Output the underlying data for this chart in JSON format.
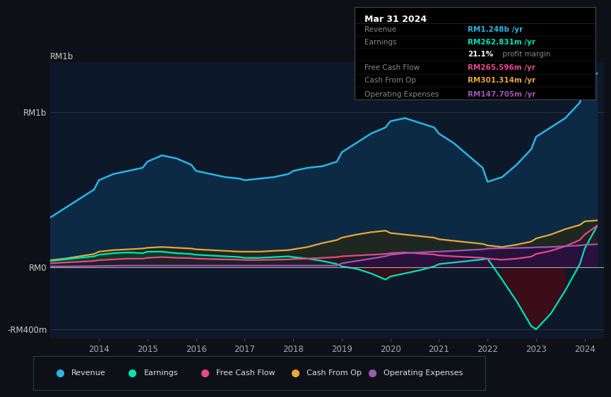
{
  "bg_color": "#0d1117",
  "plot_bg_color": "#0d1929",
  "revenue_color": "#29b5e8",
  "earnings_color": "#00e5b4",
  "free_cash_flow_color": "#e8488a",
  "cash_from_op_color": "#e8a838",
  "operating_expenses_color": "#9b59b6",
  "revenue_fill": "#0d2a45",
  "earnings_fill_pos": "#0d3a28",
  "earnings_fill_neg": "#3a0d18",
  "fcf_fill_neg": "#3a0d18",
  "cashop_fill": "#1e2010",
  "opex_fill": "#1a0d2a",
  "info_revenue_color": "#29b5e8",
  "info_earnings_color": "#00e5b4",
  "info_fcf_color": "#e8488a",
  "info_cashop_color": "#e8a838",
  "info_opex_color": "#9b59b6",
  "legend_labels": [
    "Revenue",
    "Earnings",
    "Free Cash Flow",
    "Cash From Op",
    "Operating Expenses"
  ],
  "legend_colors": [
    "#29b5e8",
    "#00e5b4",
    "#e8488a",
    "#e8a838",
    "#9b59b6"
  ],
  "years": [
    2013.0,
    2013.3,
    2013.6,
    2013.9,
    2014.0,
    2014.3,
    2014.6,
    2014.9,
    2015.0,
    2015.3,
    2015.6,
    2015.9,
    2016.0,
    2016.3,
    2016.6,
    2016.9,
    2017.0,
    2017.3,
    2017.6,
    2017.9,
    2018.0,
    2018.3,
    2018.6,
    2018.9,
    2019.0,
    2019.3,
    2019.6,
    2019.9,
    2020.0,
    2020.3,
    2020.6,
    2020.9,
    2021.0,
    2021.3,
    2021.6,
    2021.9,
    2022.0,
    2022.3,
    2022.6,
    2022.9,
    2023.0,
    2023.3,
    2023.6,
    2023.9,
    2024.0,
    2024.25
  ],
  "revenue": [
    0.32,
    0.38,
    0.44,
    0.5,
    0.56,
    0.6,
    0.62,
    0.64,
    0.68,
    0.72,
    0.7,
    0.66,
    0.62,
    0.6,
    0.58,
    0.57,
    0.56,
    0.57,
    0.58,
    0.6,
    0.62,
    0.64,
    0.65,
    0.68,
    0.74,
    0.8,
    0.86,
    0.9,
    0.94,
    0.96,
    0.93,
    0.9,
    0.86,
    0.8,
    0.72,
    0.64,
    0.55,
    0.58,
    0.66,
    0.76,
    0.84,
    0.9,
    0.96,
    1.06,
    1.18,
    1.248
  ],
  "earnings": [
    0.04,
    0.05,
    0.06,
    0.07,
    0.08,
    0.09,
    0.095,
    0.09,
    0.1,
    0.1,
    0.09,
    0.085,
    0.08,
    0.075,
    0.07,
    0.065,
    0.06,
    0.06,
    0.065,
    0.07,
    0.065,
    0.055,
    0.04,
    0.02,
    0.005,
    -0.01,
    -0.04,
    -0.08,
    -0.06,
    -0.04,
    -0.02,
    0.005,
    0.02,
    0.03,
    0.04,
    0.05,
    0.055,
    -0.08,
    -0.22,
    -0.38,
    -0.4,
    -0.3,
    -0.15,
    0.02,
    0.12,
    0.263
  ],
  "free_cash_flow": [
    0.025,
    0.03,
    0.035,
    0.04,
    0.045,
    0.05,
    0.055,
    0.055,
    0.06,
    0.065,
    0.06,
    0.058,
    0.055,
    0.052,
    0.05,
    0.048,
    0.046,
    0.046,
    0.048,
    0.05,
    0.052,
    0.055,
    0.06,
    0.065,
    0.07,
    0.075,
    0.08,
    0.085,
    0.09,
    0.095,
    0.088,
    0.082,
    0.076,
    0.07,
    0.065,
    0.06,
    0.055,
    0.048,
    0.055,
    0.068,
    0.085,
    0.105,
    0.135,
    0.175,
    0.21,
    0.266
  ],
  "cash_from_op": [
    0.045,
    0.055,
    0.07,
    0.085,
    0.1,
    0.11,
    0.115,
    0.12,
    0.125,
    0.13,
    0.125,
    0.12,
    0.115,
    0.11,
    0.105,
    0.1,
    0.1,
    0.1,
    0.105,
    0.11,
    0.115,
    0.13,
    0.155,
    0.175,
    0.19,
    0.21,
    0.225,
    0.235,
    0.22,
    0.21,
    0.2,
    0.19,
    0.18,
    0.17,
    0.16,
    0.15,
    0.14,
    0.13,
    0.145,
    0.165,
    0.185,
    0.21,
    0.245,
    0.272,
    0.295,
    0.301
  ],
  "operating_expenses": [
    0.005,
    0.005,
    0.006,
    0.007,
    0.008,
    0.009,
    0.01,
    0.01,
    0.01,
    0.01,
    0.01,
    0.01,
    0.01,
    0.01,
    0.01,
    0.01,
    0.01,
    0.01,
    0.01,
    0.01,
    0.01,
    0.01,
    0.01,
    0.01,
    0.025,
    0.04,
    0.055,
    0.07,
    0.08,
    0.09,
    0.095,
    0.1,
    0.1,
    0.105,
    0.11,
    0.115,
    0.12,
    0.122,
    0.124,
    0.126,
    0.128,
    0.13,
    0.135,
    0.14,
    0.144,
    0.148
  ],
  "xlim": [
    2013.0,
    2024.4
  ],
  "ylim": [
    -0.46,
    1.32
  ],
  "ytick_positions": [
    -0.4,
    0.0,
    1.0
  ],
  "ytick_labels": [
    "-RM400m",
    "RM0",
    "RM1b"
  ],
  "xtick_positions": [
    2014,
    2015,
    2016,
    2017,
    2018,
    2019,
    2020,
    2021,
    2022,
    2023,
    2024
  ]
}
